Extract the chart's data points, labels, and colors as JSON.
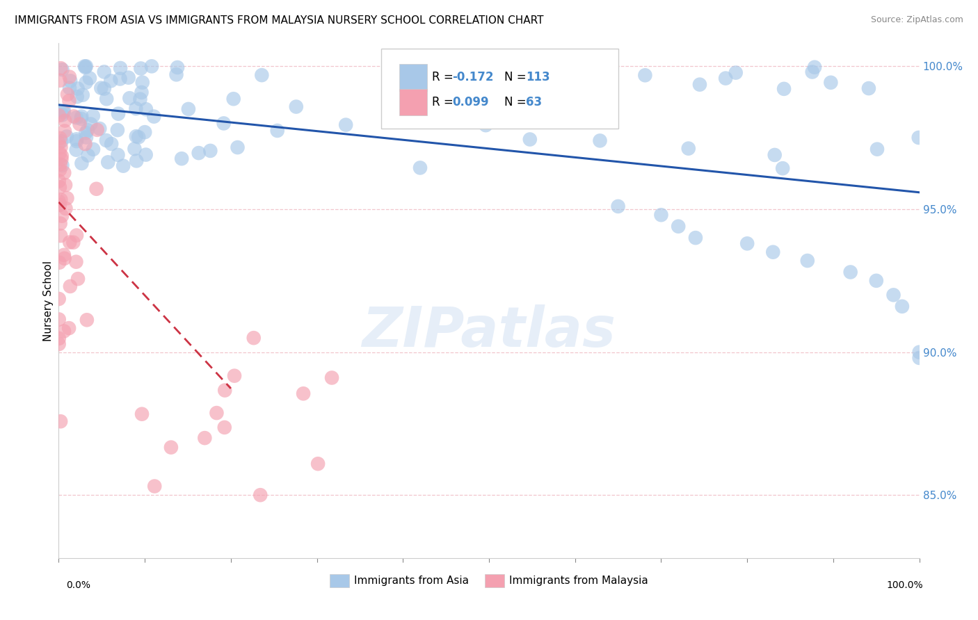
{
  "title": "IMMIGRANTS FROM ASIA VS IMMIGRANTS FROM MALAYSIA NURSERY SCHOOL CORRELATION CHART",
  "source": "Source: ZipAtlas.com",
  "ylabel": "Nursery School",
  "xlim": [
    0.0,
    1.0
  ],
  "ylim": [
    0.828,
    1.008
  ],
  "yticks": [
    0.85,
    0.9,
    0.95,
    1.0
  ],
  "ytick_labels": [
    "85.0%",
    "90.0%",
    "95.0%",
    "100.0%"
  ],
  "xtick_labels": [
    "0.0%",
    "",
    "",
    "",
    "",
    "",
    "100.0%"
  ],
  "legend_r_blue": "-0.172",
  "legend_n_blue": "113",
  "legend_r_pink": "0.099",
  "legend_n_pink": "63",
  "legend_label_blue": "Immigrants from Asia",
  "legend_label_pink": "Immigrants from Malaysia",
  "blue_color": "#a8c8e8",
  "pink_color": "#f4a0b0",
  "blue_line_color": "#2255aa",
  "pink_line_color": "#cc3344",
  "axis_color": "#4488cc",
  "grid_color": "#f0c0c8",
  "title_fontsize": 11,
  "source_fontsize": 9,
  "watermark": "ZIPatlas",
  "background_color": "#ffffff"
}
